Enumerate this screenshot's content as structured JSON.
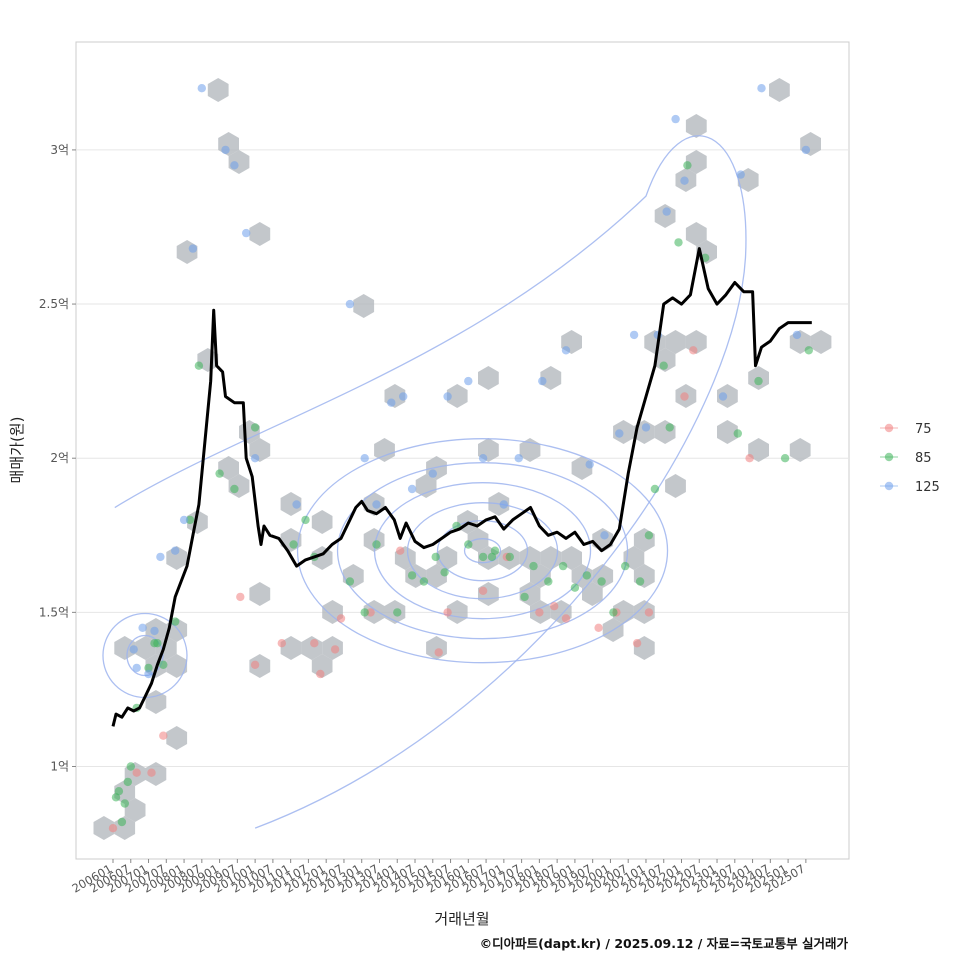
{
  "chart_data": {
    "type": "scatter",
    "xlabel": "거래년월",
    "ylabel": "매매가(원)",
    "caption": "©디아파트(dapt.kr) / 2025.09.12 / 자료=국토교통부 실거래가",
    "x_range": [
      "2006-01",
      "2025-12"
    ],
    "ylim": [
      0.7,
      3.35
    ],
    "y_ticks": [
      {
        "value": 1,
        "label": "1억"
      },
      {
        "value": 1.5,
        "label": "1.5억"
      },
      {
        "value": 2,
        "label": "2억"
      },
      {
        "value": 2.5,
        "label": "2.5억"
      },
      {
        "value": 3,
        "label": "3억"
      }
    ],
    "x_tick_labels": [
      "200601",
      "200607",
      "200701",
      "200707",
      "200801",
      "200807",
      "200901",
      "200907",
      "201001",
      "201007",
      "201101",
      "201107",
      "201201",
      "201207",
      "201301",
      "201307",
      "201401",
      "201407",
      "201501",
      "201507",
      "201601",
      "201607",
      "201701",
      "201707",
      "201801",
      "201807",
      "201901",
      "201907",
      "202001",
      "202007",
      "202101",
      "202107",
      "202201",
      "202207",
      "202301",
      "202307",
      "202401",
      "202407",
      "202501",
      "202507"
    ],
    "grid": true,
    "legend_position": "right",
    "legend": [
      {
        "label": "75",
        "color": "#f08080"
      },
      {
        "label": "85",
        "color": "#3cb35a"
      },
      {
        "label": "125",
        "color": "#6d9eeb"
      }
    ],
    "layers": {
      "hexbin_color": "#b4b9be",
      "contour_color": "#9db4ee",
      "trend_color": "#000000"
    },
    "trend_line": {
      "name": "",
      "points": [
        [
          "2006-01",
          1.13
        ],
        [
          "2006-02",
          1.17
        ],
        [
          "2006-04",
          1.16
        ],
        [
          "2006-06",
          1.19
        ],
        [
          "2006-08",
          1.18
        ],
        [
          "2006-10",
          1.19
        ],
        [
          "2006-12",
          1.23
        ],
        [
          "2007-02",
          1.27
        ],
        [
          "2007-04",
          1.33
        ],
        [
          "2007-06",
          1.38
        ],
        [
          "2007-08",
          1.45
        ],
        [
          "2007-10",
          1.55
        ],
        [
          "2007-12",
          1.6
        ],
        [
          "2008-02",
          1.65
        ],
        [
          "2008-04",
          1.75
        ],
        [
          "2008-06",
          1.85
        ],
        [
          "2008-08",
          2.05
        ],
        [
          "2008-10",
          2.25
        ],
        [
          "2008-11",
          2.48
        ],
        [
          "2008-12",
          2.3
        ],
        [
          "2009-02",
          2.28
        ],
        [
          "2009-03",
          2.2
        ],
        [
          "2009-06",
          2.18
        ],
        [
          "2009-09",
          2.18
        ],
        [
          "2009-10",
          2.0
        ],
        [
          "2009-12",
          1.94
        ],
        [
          "2010-02",
          1.78
        ],
        [
          "2010-03",
          1.72
        ],
        [
          "2010-04",
          1.78
        ],
        [
          "2010-06",
          1.75
        ],
        [
          "2010-09",
          1.74
        ],
        [
          "2010-12",
          1.7
        ],
        [
          "2011-03",
          1.65
        ],
        [
          "2011-06",
          1.67
        ],
        [
          "2011-09",
          1.68
        ],
        [
          "2011-12",
          1.69
        ],
        [
          "2012-03",
          1.72
        ],
        [
          "2012-06",
          1.74
        ],
        [
          "2012-09",
          1.8
        ],
        [
          "2012-11",
          1.84
        ],
        [
          "2013-01",
          1.86
        ],
        [
          "2013-03",
          1.83
        ],
        [
          "2013-06",
          1.82
        ],
        [
          "2013-09",
          1.84
        ],
        [
          "2013-12",
          1.8
        ],
        [
          "2014-02",
          1.74
        ],
        [
          "2014-04",
          1.79
        ],
        [
          "2014-07",
          1.73
        ],
        [
          "2014-10",
          1.71
        ],
        [
          "2015-01",
          1.72
        ],
        [
          "2015-04",
          1.74
        ],
        [
          "2015-07",
          1.76
        ],
        [
          "2015-10",
          1.77
        ],
        [
          "2016-01",
          1.79
        ],
        [
          "2016-04",
          1.78
        ],
        [
          "2016-07",
          1.8
        ],
        [
          "2016-10",
          1.81
        ],
        [
          "2017-01",
          1.77
        ],
        [
          "2017-04",
          1.8
        ],
        [
          "2017-07",
          1.82
        ],
        [
          "2017-10",
          1.84
        ],
        [
          "2018-01",
          1.78
        ],
        [
          "2018-04",
          1.75
        ],
        [
          "2018-07",
          1.76
        ],
        [
          "2018-10",
          1.74
        ],
        [
          "2019-01",
          1.76
        ],
        [
          "2019-04",
          1.72
        ],
        [
          "2019-07",
          1.73
        ],
        [
          "2019-10",
          1.7
        ],
        [
          "2020-01",
          1.72
        ],
        [
          "2020-04",
          1.77
        ],
        [
          "2020-07",
          1.95
        ],
        [
          "2020-10",
          2.1
        ],
        [
          "2021-01",
          2.2
        ],
        [
          "2021-04",
          2.3
        ],
        [
          "2021-07",
          2.5
        ],
        [
          "2021-10",
          2.52
        ],
        [
          "2022-01",
          2.5
        ],
        [
          "2022-04",
          2.53
        ],
        [
          "2022-07",
          2.68
        ],
        [
          "2022-10",
          2.55
        ],
        [
          "2023-01",
          2.5
        ],
        [
          "2023-04",
          2.53
        ],
        [
          "2023-07",
          2.57
        ],
        [
          "2023-10",
          2.54
        ],
        [
          "2024-01",
          2.54
        ],
        [
          "2024-02",
          2.3
        ],
        [
          "2024-04",
          2.36
        ],
        [
          "2024-07",
          2.38
        ],
        [
          "2024-10",
          2.42
        ],
        [
          "2025-01",
          2.44
        ],
        [
          "2025-04",
          2.44
        ],
        [
          "2025-09",
          2.44
        ]
      ]
    },
    "series": [
      {
        "name": "75",
        "points": [
          [
            "2006-01",
            0.8
          ],
          [
            "2007-02",
            0.98
          ],
          [
            "2007-06",
            1.1
          ],
          [
            "2009-08",
            1.55
          ],
          [
            "2010-01",
            1.33
          ],
          [
            "2010-10",
            1.4
          ],
          [
            "2011-09",
            1.4
          ],
          [
            "2011-11",
            1.3
          ],
          [
            "2012-04",
            1.38
          ],
          [
            "2012-06",
            1.48
          ],
          [
            "2013-04",
            1.5
          ],
          [
            "2014-02",
            1.7
          ],
          [
            "2015-03",
            1.37
          ],
          [
            "2015-06",
            1.5
          ],
          [
            "2016-06",
            1.57
          ],
          [
            "2017-02",
            1.68
          ],
          [
            "2018-01",
            1.5
          ],
          [
            "2018-06",
            1.52
          ],
          [
            "2018-10",
            1.48
          ],
          [
            "2019-09",
            1.45
          ],
          [
            "2020-03",
            1.5
          ],
          [
            "2020-10",
            1.4
          ],
          [
            "2021-02",
            1.5
          ],
          [
            "2022-02",
            2.2
          ],
          [
            "2022-05",
            2.35
          ],
          [
            "2023-12",
            2.0
          ],
          [
            "2006-09",
            0.98
          ]
        ]
      },
      {
        "name": "85",
        "points": [
          [
            "2006-02",
            0.9
          ],
          [
            "2006-03",
            0.92
          ],
          [
            "2006-04",
            0.82
          ],
          [
            "2006-05",
            0.88
          ],
          [
            "2006-06",
            0.95
          ],
          [
            "2006-07",
            1.0
          ],
          [
            "2006-09",
            1.19
          ],
          [
            "2007-01",
            1.32
          ],
          [
            "2007-03",
            1.4
          ],
          [
            "2007-06",
            1.33
          ],
          [
            "2007-10",
            1.47
          ],
          [
            "2008-03",
            1.8
          ],
          [
            "2008-06",
            2.3
          ],
          [
            "2009-01",
            1.95
          ],
          [
            "2009-06",
            1.9
          ],
          [
            "2010-01",
            2.1
          ],
          [
            "2011-02",
            1.72
          ],
          [
            "2011-06",
            1.8
          ],
          [
            "2011-09",
            1.68
          ],
          [
            "2012-09",
            1.6
          ],
          [
            "2013-02",
            1.5
          ],
          [
            "2013-06",
            1.72
          ],
          [
            "2014-01",
            1.5
          ],
          [
            "2014-06",
            1.62
          ],
          [
            "2014-10",
            1.6
          ],
          [
            "2015-02",
            1.68
          ],
          [
            "2015-05",
            1.63
          ],
          [
            "2015-09",
            1.78
          ],
          [
            "2016-01",
            1.72
          ],
          [
            "2016-06",
            1.68
          ],
          [
            "2016-10",
            1.7
          ],
          [
            "2017-03",
            1.68
          ],
          [
            "2017-08",
            1.55
          ],
          [
            "2017-11",
            1.65
          ],
          [
            "2018-04",
            1.6
          ],
          [
            "2018-09",
            1.65
          ],
          [
            "2019-01",
            1.58
          ],
          [
            "2019-05",
            1.62
          ],
          [
            "2019-10",
            1.6
          ],
          [
            "2020-02",
            1.5
          ],
          [
            "2020-06",
            1.65
          ],
          [
            "2020-11",
            1.6
          ],
          [
            "2021-02",
            1.75
          ],
          [
            "2021-04",
            1.9
          ],
          [
            "2021-07",
            2.3
          ],
          [
            "2021-09",
            2.1
          ],
          [
            "2021-12",
            2.7
          ],
          [
            "2022-03",
            2.95
          ],
          [
            "2022-09",
            2.65
          ],
          [
            "2023-08",
            2.08
          ],
          [
            "2024-03",
            2.25
          ],
          [
            "2024-12",
            2.0
          ],
          [
            "2025-08",
            2.35
          ],
          [
            "2007-04",
            1.4
          ],
          [
            "2016-09",
            1.68
          ]
        ]
      },
      {
        "name": "125",
        "points": [
          [
            "2006-08",
            1.38
          ],
          [
            "2006-09",
            1.32
          ],
          [
            "2006-11",
            1.45
          ],
          [
            "2007-01",
            1.3
          ],
          [
            "2007-03",
            1.44
          ],
          [
            "2007-05",
            1.68
          ],
          [
            "2007-10",
            1.7
          ],
          [
            "2008-01",
            1.8
          ],
          [
            "2008-04",
            2.68
          ],
          [
            "2008-07",
            3.2
          ],
          [
            "2009-03",
            3.0
          ],
          [
            "2009-06",
            2.95
          ],
          [
            "2009-10",
            2.73
          ],
          [
            "2010-01",
            2.0
          ],
          [
            "2011-03",
            1.85
          ],
          [
            "2012-09",
            2.5
          ],
          [
            "2013-02",
            2.0
          ],
          [
            "2013-06",
            1.85
          ],
          [
            "2013-11",
            2.18
          ],
          [
            "2014-03",
            2.2
          ],
          [
            "2014-06",
            1.9
          ],
          [
            "2015-01",
            1.95
          ],
          [
            "2015-06",
            2.2
          ],
          [
            "2016-01",
            2.25
          ],
          [
            "2016-06",
            2.0
          ],
          [
            "2017-01",
            1.85
          ],
          [
            "2017-06",
            2.0
          ],
          [
            "2018-02",
            2.25
          ],
          [
            "2018-10",
            2.35
          ],
          [
            "2019-06",
            1.98
          ],
          [
            "2019-11",
            1.75
          ],
          [
            "2020-04",
            2.08
          ],
          [
            "2020-09",
            2.4
          ],
          [
            "2021-01",
            2.1
          ],
          [
            "2021-05",
            2.4
          ],
          [
            "2021-08",
            2.8
          ],
          [
            "2021-11",
            3.1
          ],
          [
            "2022-02",
            2.9
          ],
          [
            "2023-03",
            2.2
          ],
          [
            "2023-09",
            2.92
          ],
          [
            "2024-04",
            3.2
          ],
          [
            "2025-07",
            3.0
          ],
          [
            "2025-04",
            2.4
          ]
        ]
      }
    ]
  }
}
